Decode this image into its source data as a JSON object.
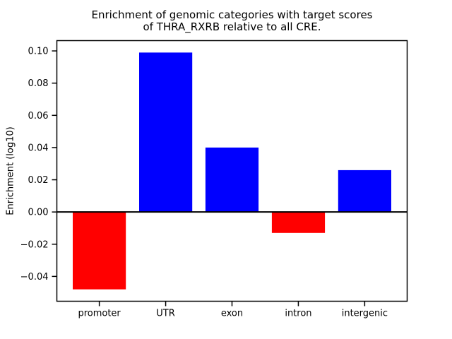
{
  "figure": {
    "background_color": "#ffffff",
    "text_color": "#000000"
  },
  "chart_data": {
    "type": "bar",
    "title": "Enrichment of genomic categories with target scores\nof THRA_RXRB relative to all CRE.",
    "title_line1": "Enrichment of genomic categories with target scores",
    "title_line2": "of THRA_RXRB relative to all CRE.",
    "xlabel": "",
    "ylabel": "Enrichment (log10)",
    "categories": [
      "promoter",
      "UTR",
      "exon",
      "intron",
      "intergenic"
    ],
    "values": [
      -0.048,
      0.099,
      0.04,
      -0.013,
      0.026
    ],
    "bar_colors": [
      "#ff0000",
      "#0000ff",
      "#0000ff",
      "#ff0000",
      "#0000ff"
    ],
    "positive_color": "#0000ff",
    "negative_color": "#ff0000",
    "axis_color": "#000000",
    "y_ticks": [
      0.1,
      0.08,
      0.06,
      0.04,
      0.02,
      0.0,
      -0.02,
      -0.04
    ],
    "y_tick_labels": [
      "0.10",
      "0.08",
      "0.06",
      "0.04",
      "0.02",
      "0.00",
      "−0.02",
      "−0.04"
    ],
    "ylim": [
      -0.0554,
      0.1064
    ],
    "grid": false,
    "legend": false,
    "zero_line": true
  }
}
